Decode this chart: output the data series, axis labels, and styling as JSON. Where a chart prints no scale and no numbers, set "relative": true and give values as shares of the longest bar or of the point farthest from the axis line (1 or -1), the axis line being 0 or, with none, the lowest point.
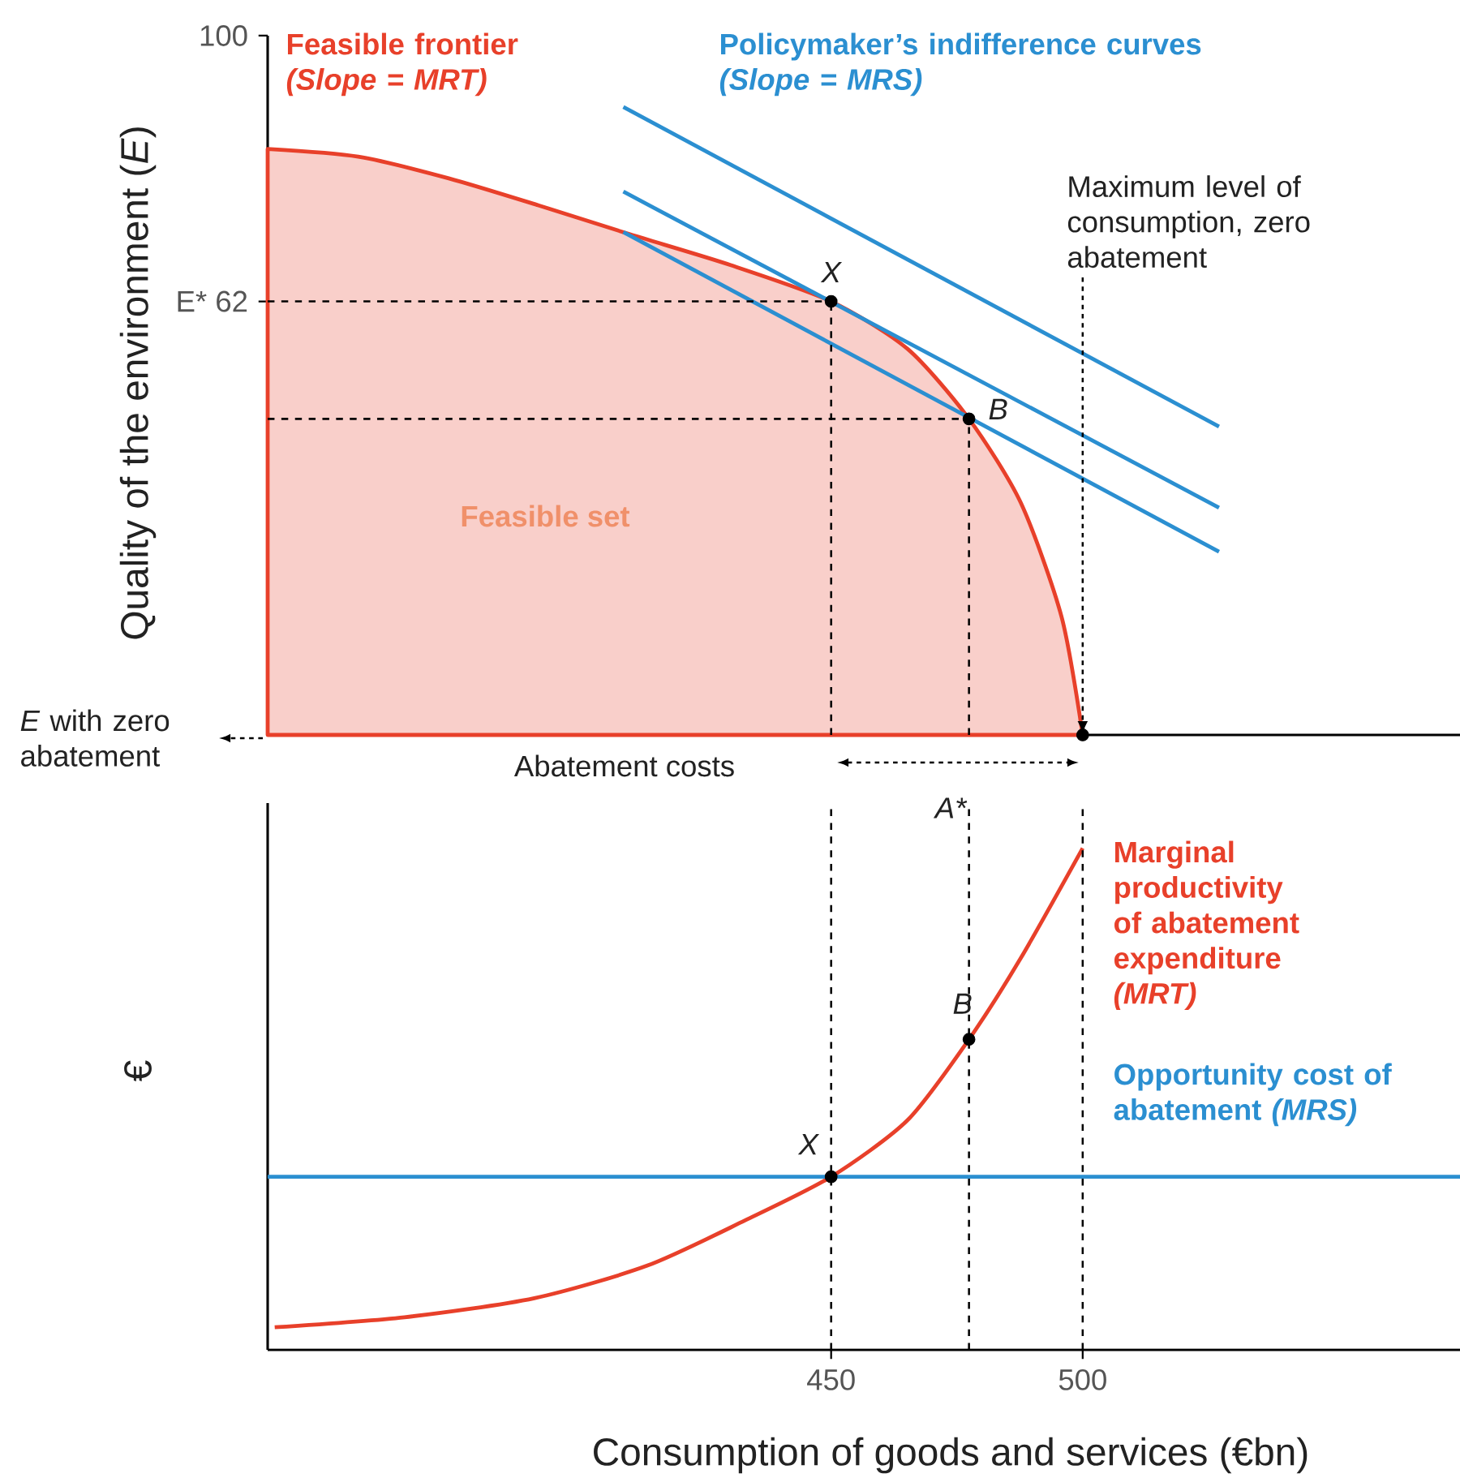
{
  "chart_data": [
    {
      "type": "area",
      "ylabel": "Quality of the environment (*E*)",
      "xlim": [
        338,
        575
      ],
      "ylim": [
        0,
        100
      ],
      "xticks": [
        450,
        500
      ],
      "yticks": [
        {
          "value": 62,
          "label": "E* 62"
        },
        100
      ],
      "tick_labels": "y",
      "series": [
        {
          "name": "Feasible frontier *(Slope = MRT)*",
          "color": "#e8402a",
          "x": [
            338,
            356,
            374,
            392,
            410,
            430,
            450,
            465.2,
            477.4,
            487.7,
            495.8,
            500
          ],
          "values": [
            83.8,
            82.7,
            79.6,
            75.7,
            71.6,
            67.2,
            62,
            55.2,
            45.2,
            33.2,
            16.9,
            0
          ]
        },
        {
          "type": "line",
          "name": "Policymaker’s indifference curves *(Slope = MRS)*",
          "color": "#2b8fd1",
          "x": [
            408.7,
            527.1
          ],
          "values": [
            89.8,
            44.1
          ]
        },
        {
          "type": "line",
          "color": "#2b8fd1",
          "x": [
            408.7,
            527.1
          ],
          "values": [
            77.7,
            32.5
          ]
        },
        {
          "type": "line",
          "color": "#2b8fd1",
          "x": [
            408.7,
            527.1
          ],
          "values": [
            71.9,
            26.2
          ]
        },
        {
          "type": "scatter",
          "color": "#000000",
          "marker": "circle",
          "x": [
            450,
            477.4,
            500
          ],
          "values": [
            62,
            45.2,
            0
          ]
        }
      ],
      "ref_lines": [
        {
          "axis": "y",
          "value": 62,
          "line_style": "dashed"
        },
        {
          "axis": "y",
          "value": 45.2,
          "line_style": "dashed"
        },
        {
          "axis": "x",
          "value": 450,
          "line_style": "dashed"
        },
        {
          "axis": "x",
          "value": 477.4,
          "line_style": "dashed"
        }
      ],
      "annotations": [
        {
          "text": "Maximum level of consumption, zero abatement",
          "x": 500,
          "y": 0
        },
        "Feasible set",
        {
          "text": "X",
          "x": 450,
          "y": 62
        },
        {
          "text": "B",
          "x": 477.4,
          "y": 45.2
        },
        "*E* with zero abatement",
        "Abatement costs",
        "A*"
      ]
    },
    {
      "type": "line",
      "relative": true,
      "xlabel": "Consumption of goods and services (€bn)",
      "ylabel": "€",
      "xlim": [
        338,
        575
      ],
      "xticks": [
        450,
        500
      ],
      "tick_labels": "x",
      "series": [
        {
          "name": "Marginal productivity of abatement expenditure *(MRT)*",
          "color": "#e8402a",
          "x": [
            339.4,
            365.2,
            391,
            413.5,
            432.9,
            450,
            465.2,
            477.4,
            487.7,
            500
          ],
          "values": [
            0.045,
            0.065,
            0.103,
            0.168,
            0.258,
            0.345,
            0.458,
            0.619,
            0.781,
            1
          ]
        },
        {
          "type": "line",
          "name": "Opportunity cost of abatement *(MRS)*",
          "color": "#2b8fd1",
          "x": [
            338,
            575
          ],
          "values": [
            0.345,
            0.345
          ]
        },
        {
          "type": "scatter",
          "color": "#000000",
          "marker": "circle",
          "x": [
            450,
            477.4
          ],
          "values": [
            0.345,
            0.619
          ]
        }
      ],
      "ref_lines": [
        {
          "axis": "x",
          "value": 450,
          "line_style": "dashed"
        },
        {
          "axis": "x",
          "value": 477.4,
          "line_style": "dashed"
        },
        {
          "axis": "x",
          "value": 500,
          "line_style": "dashed"
        }
      ],
      "annotations": [
        {
          "text": "X",
          "x": 450,
          "y": 0.345
        },
        {
          "text": "B",
          "x": 477.4,
          "y": 0.619
        }
      ]
    }
  ]
}
